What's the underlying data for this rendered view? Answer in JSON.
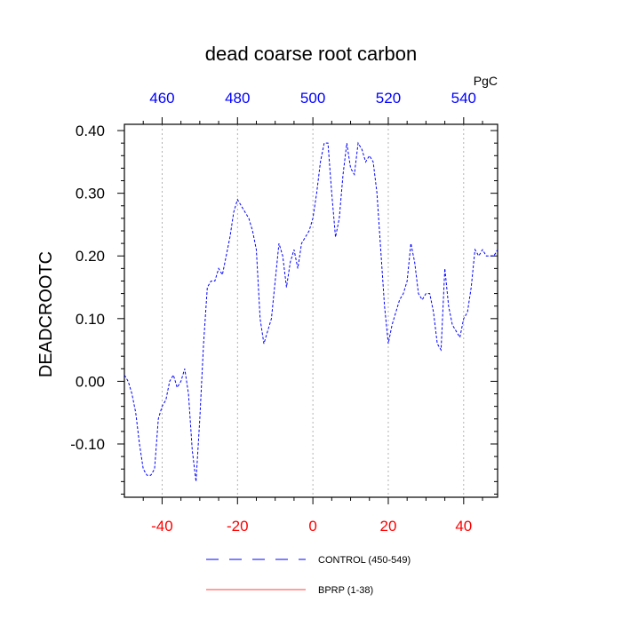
{
  "chart_data": {
    "type": "line",
    "title": "dead coarse root carbon",
    "ylabel": "DEADCROOTC",
    "top_axis_unit": "PgC",
    "xlim": [
      -50,
      49
    ],
    "ylim": [
      -0.185,
      0.41
    ],
    "top_xlim": [
      450,
      549
    ],
    "x_ticks": [
      -40,
      -20,
      0,
      20,
      40
    ],
    "x_tick_labels": [
      "-40",
      "-20",
      "0",
      "20",
      "40"
    ],
    "top_ticks": [
      460,
      480,
      500,
      520,
      540
    ],
    "top_tick_labels": [
      "460",
      "480",
      "500",
      "520",
      "540"
    ],
    "y_ticks": [
      -0.1,
      0.0,
      0.1,
      0.2,
      0.3,
      0.4
    ],
    "y_tick_labels": [
      "-0.10",
      "0.00",
      "0.10",
      "0.20",
      "0.30",
      "0.40"
    ],
    "colors": {
      "control": "#0000ff",
      "bprp": "#ff0000",
      "bottom_ticks": "#ff0000",
      "top_ticks": "#0000ff",
      "grid": "#a0a0a0"
    },
    "legend": [
      {
        "name": "CONTROL (450-549)",
        "style": "dashed",
        "color": "#0000ff"
      },
      {
        "name": "BPRP (1-38)",
        "style": "solid",
        "color": "#ff0000"
      }
    ],
    "series": [
      {
        "name": "CONTROL (450-549)",
        "x": [
          -50,
          -49,
          -48,
          -47,
          -46,
          -45,
          -44,
          -43,
          -42,
          -41,
          -40,
          -39,
          -38,
          -37,
          -36,
          -35,
          -34,
          -33,
          -32,
          -31,
          -30,
          -29,
          -28,
          -27,
          -26,
          -25,
          -24,
          -23,
          -22,
          -21,
          -20,
          -19,
          -18,
          -17,
          -16,
          -15,
          -14,
          -13,
          -12,
          -11,
          -10,
          -9,
          -8,
          -7,
          -6,
          -5,
          -4,
          -3,
          -2,
          -1,
          0,
          1,
          2,
          3,
          4,
          5,
          6,
          7,
          8,
          9,
          10,
          11,
          12,
          13,
          14,
          15,
          16,
          17,
          18,
          19,
          20,
          21,
          22,
          23,
          24,
          25,
          26,
          27,
          28,
          29,
          30,
          31,
          32,
          33,
          34,
          35,
          36,
          37,
          38,
          39,
          40,
          41,
          42,
          43,
          44,
          45,
          46,
          47,
          48,
          49
        ],
        "values": [
          0.01,
          0.0,
          -0.02,
          -0.05,
          -0.1,
          -0.14,
          -0.15,
          -0.15,
          -0.14,
          -0.06,
          -0.04,
          -0.03,
          0.0,
          0.01,
          -0.01,
          0.0,
          0.02,
          -0.02,
          -0.11,
          -0.16,
          -0.06,
          0.06,
          0.15,
          0.16,
          0.16,
          0.18,
          0.17,
          0.2,
          0.23,
          0.27,
          0.29,
          0.28,
          0.27,
          0.26,
          0.24,
          0.21,
          0.1,
          0.06,
          0.08,
          0.1,
          0.16,
          0.22,
          0.2,
          0.15,
          0.19,
          0.21,
          0.18,
          0.22,
          0.23,
          0.24,
          0.26,
          0.3,
          0.35,
          0.38,
          0.38,
          0.3,
          0.23,
          0.26,
          0.33,
          0.38,
          0.34,
          0.33,
          0.38,
          0.37,
          0.35,
          0.36,
          0.35,
          0.3,
          0.21,
          0.12,
          0.06,
          0.09,
          0.11,
          0.13,
          0.14,
          0.16,
          0.22,
          0.19,
          0.14,
          0.13,
          0.14,
          0.14,
          0.11,
          0.06,
          0.05,
          0.18,
          0.12,
          0.09,
          0.08,
          0.07,
          0.1,
          0.11,
          0.15,
          0.21,
          0.2,
          0.21,
          0.2,
          0.2,
          0.2,
          0.21
        ]
      }
    ]
  }
}
